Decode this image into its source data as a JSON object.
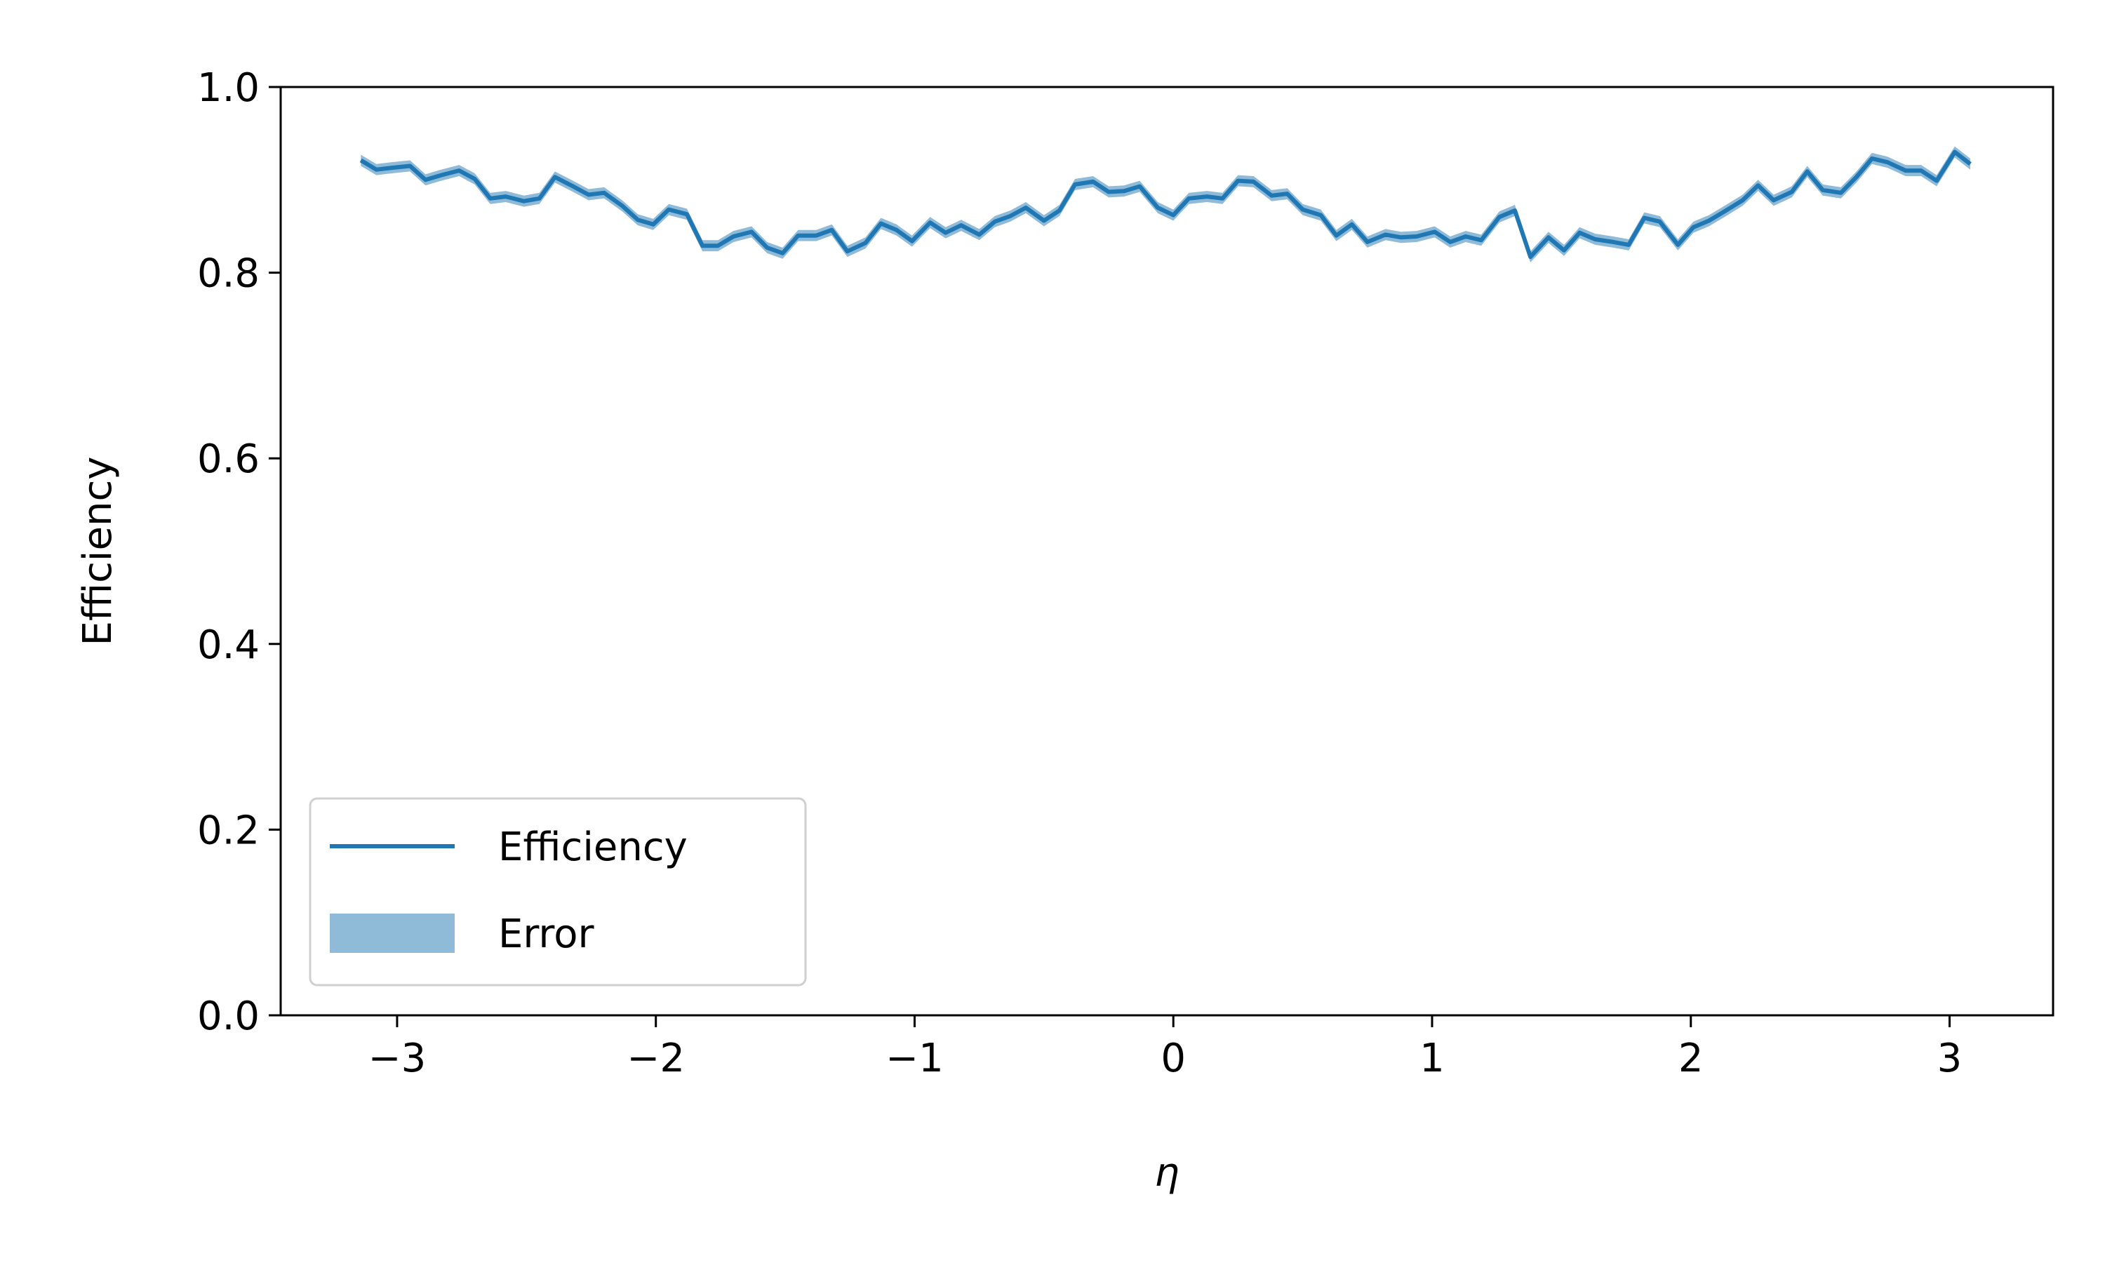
{
  "chart_data": {
    "type": "line",
    "title": "",
    "xlabel": "η",
    "ylabel": "Efficiency",
    "xlim": [
      -3.45,
      3.4
    ],
    "ylim": [
      0.0,
      1.0
    ],
    "xticks": [
      -3,
      -2,
      -1,
      0,
      1,
      2,
      3
    ],
    "xtick_labels": [
      "−3",
      "−2",
      "−1",
      "0",
      "1",
      "2",
      "3"
    ],
    "yticks": [
      0.0,
      0.2,
      0.4,
      0.6,
      0.8,
      1.0
    ],
    "ytick_labels": [
      "0.0",
      "0.2",
      "0.4",
      "0.6",
      "0.8",
      "1.0"
    ],
    "grid": false,
    "legend": {
      "placement": "lower-left",
      "entries": [
        "Efficiency",
        "Error"
      ]
    },
    "colors": {
      "line": "#1f77b4",
      "band": "#1f77b4"
    },
    "series": [
      {
        "name": "Efficiency",
        "x": [
          -3.14,
          -3.08,
          -3.02,
          -2.95,
          -2.89,
          -2.83,
          -2.76,
          -2.7,
          -2.64,
          -2.58,
          -2.51,
          -2.45,
          -2.39,
          -2.32,
          -2.26,
          -2.2,
          -2.13,
          -2.07,
          -2.01,
          -1.95,
          -1.88,
          -1.82,
          -1.76,
          -1.7,
          -1.63,
          -1.57,
          -1.51,
          -1.45,
          -1.38,
          -1.32,
          -1.26,
          -1.19,
          -1.13,
          -1.07,
          -1.01,
          -0.94,
          -0.88,
          -0.82,
          -0.75,
          -0.69,
          -0.63,
          -0.57,
          -0.5,
          -0.44,
          -0.38,
          -0.31,
          -0.25,
          -0.19,
          -0.13,
          -0.06,
          0.0,
          0.06,
          0.13,
          0.19,
          0.25,
          0.31,
          0.38,
          0.44,
          0.5,
          0.57,
          0.63,
          0.69,
          0.75,
          0.82,
          0.88,
          0.94,
          1.01,
          1.07,
          1.13,
          1.19,
          1.26,
          1.32,
          1.38,
          1.45,
          1.51,
          1.57,
          1.63,
          1.7,
          1.76,
          1.82,
          1.88,
          1.95,
          2.01,
          2.07,
          2.13,
          2.2,
          2.26,
          2.32,
          2.39,
          2.45,
          2.51,
          2.58,
          2.64,
          2.7,
          2.76,
          2.83,
          2.89,
          2.95,
          3.02,
          3.08
        ],
        "y": [
          0.921,
          0.911,
          0.913,
          0.915,
          0.9,
          0.905,
          0.91,
          0.901,
          0.88,
          0.882,
          0.877,
          0.88,
          0.903,
          0.893,
          0.884,
          0.886,
          0.872,
          0.857,
          0.852,
          0.868,
          0.863,
          0.829,
          0.829,
          0.839,
          0.844,
          0.827,
          0.821,
          0.84,
          0.84,
          0.846,
          0.823,
          0.832,
          0.853,
          0.846,
          0.834,
          0.854,
          0.843,
          0.851,
          0.841,
          0.855,
          0.861,
          0.87,
          0.856,
          0.867,
          0.895,
          0.898,
          0.887,
          0.888,
          0.893,
          0.87,
          0.862,
          0.88,
          0.882,
          0.88,
          0.899,
          0.898,
          0.883,
          0.885,
          0.868,
          0.862,
          0.84,
          0.852,
          0.833,
          0.841,
          0.838,
          0.839,
          0.844,
          0.833,
          0.839,
          0.835,
          0.86,
          0.867,
          0.817,
          0.838,
          0.824,
          0.843,
          0.836,
          0.833,
          0.83,
          0.859,
          0.855,
          0.83,
          0.849,
          0.856,
          0.866,
          0.878,
          0.894,
          0.878,
          0.887,
          0.909,
          0.889,
          0.886,
          0.903,
          0.923,
          0.919,
          0.91,
          0.91,
          0.899,
          0.93,
          0.917
        ]
      },
      {
        "name": "Error",
        "band_halfwidth": 0.006
      }
    ]
  }
}
